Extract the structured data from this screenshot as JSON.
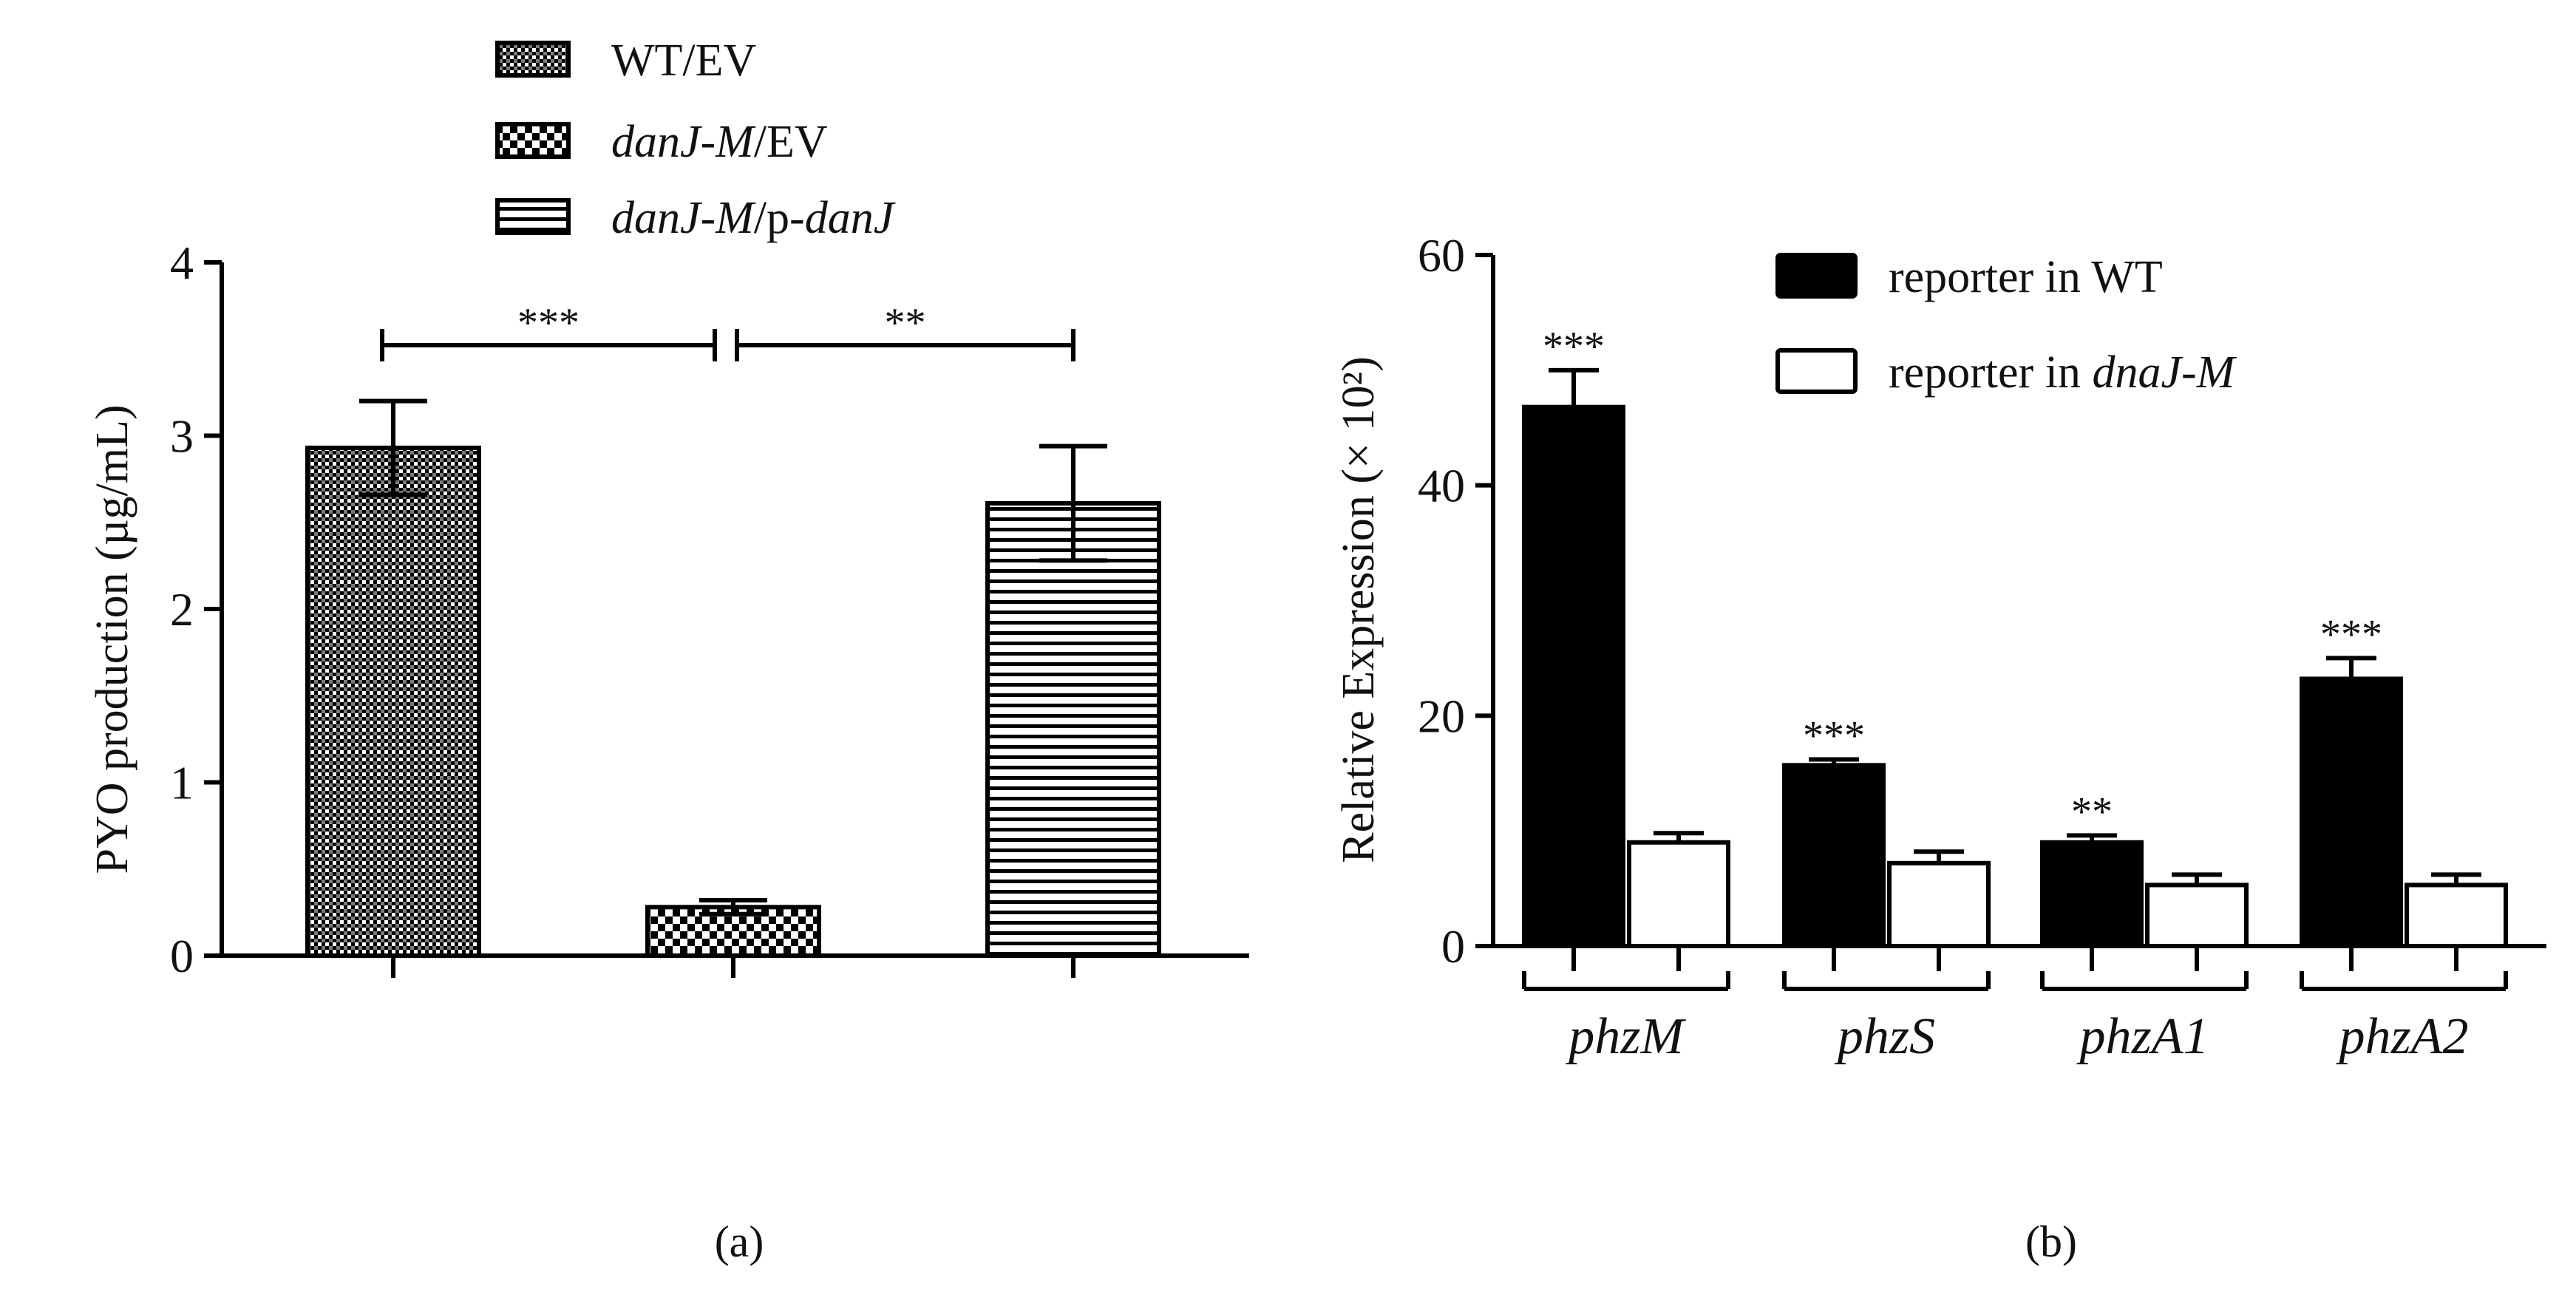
{
  "chart_data": [
    {
      "type": "bar",
      "panel_label": "(a)",
      "ylabel": "PYO production (µg/mL)",
      "ylim": [
        0,
        4
      ],
      "yticks": [
        "0",
        "1",
        "2",
        "3",
        "4"
      ],
      "legend_position": "top",
      "categories": [
        "WT/EV",
        "danJ-M/EV",
        "danJ-M/p-danJ"
      ],
      "legend": [
        {
          "italic": "",
          "normal": "WT/EV",
          "suffix_italic": "",
          "pattern": "dots"
        },
        {
          "italic": "danJ-M",
          "normal": "/EV",
          "suffix_italic": "",
          "pattern": "checker"
        },
        {
          "italic": "danJ-M",
          "normal": "/p-",
          "suffix_italic": "danJ",
          "pattern": "hlines"
        }
      ],
      "values": [
        2.93,
        0.28,
        2.61
      ],
      "errors": [
        0.27,
        0.04,
        0.33
      ],
      "significance": [
        {
          "from": 0,
          "to": 1,
          "label": "***"
        },
        {
          "from": 1,
          "to": 2,
          "label": "**"
        }
      ]
    },
    {
      "type": "bar",
      "panel_label": "(b)",
      "ylabel": "Relative Expression (× 10²)",
      "ylim": [
        0,
        60
      ],
      "yticks": [
        "0",
        "20",
        "40",
        "60"
      ],
      "legend_position": "top-right",
      "categories": [
        "phzM",
        "phzS",
        "phzA1",
        "phzA2"
      ],
      "series": [
        {
          "name": "reporter in WT",
          "name_prefix": "reporter in WT",
          "name_italic": "",
          "color": "#000000",
          "values": [
            46.8,
            15.7,
            9.0,
            23.2
          ],
          "errors": [
            3.2,
            0.5,
            0.6,
            1.8
          ]
        },
        {
          "name": "reporter in dnaJ-M",
          "name_prefix": "reporter in ",
          "name_italic": "dnaJ-M",
          "color": "#ffffff",
          "values": [
            9.0,
            7.2,
            5.3,
            5.3
          ],
          "errors": [
            0.8,
            1.0,
            0.9,
            0.9
          ]
        }
      ],
      "significance": [
        "***",
        "***",
        "**",
        "***"
      ]
    }
  ]
}
